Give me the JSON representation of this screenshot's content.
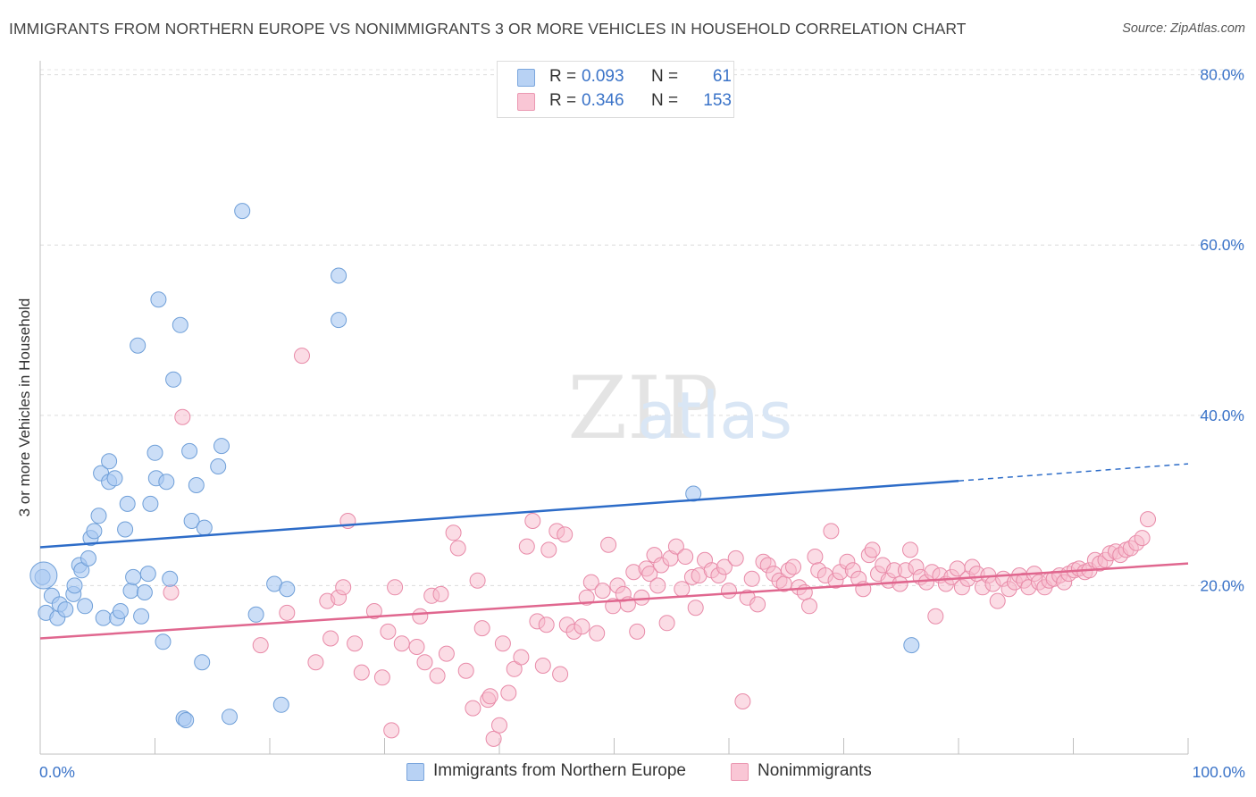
{
  "header": {
    "title": "IMMIGRANTS FROM NORTHERN EUROPE VS NONIMMIGRANTS 3 OR MORE VEHICLES IN HOUSEHOLD CORRELATION CHART",
    "source": "Source: ZipAtlas.com"
  },
  "watermark": {
    "zip": "ZIP",
    "atlas": "atlas"
  },
  "legend": {
    "series1": {
      "r_label": "R =",
      "r_value": "0.093",
      "n_label": "N =",
      "n_value": "61",
      "color": "#a9c8f2"
    },
    "series2": {
      "r_label": "R =",
      "r_value": "0.346",
      "n_label": "N =",
      "n_value": "153",
      "color": "#f7b9cc"
    }
  },
  "chart_data": {
    "type": "scatter",
    "xlabel": "",
    "ylabel": "3 or more Vehicles in Household",
    "xlim": [
      0,
      100
    ],
    "ylim": [
      0,
      83
    ],
    "x_tick_labels": [
      "0.0%",
      "100.0%"
    ],
    "y_ticks": [
      20,
      40,
      60,
      80
    ],
    "y_tick_labels": [
      "20.0%",
      "40.0%",
      "60.0%",
      "80.0%"
    ],
    "grid": true,
    "series": [
      {
        "name": "Immigrants from Northern Europe",
        "color": "#a9c8f2",
        "stroke": "#6f9fd8",
        "trend": {
          "x0": 0,
          "y0": 24.5,
          "x1": 80,
          "y1": 32.3,
          "dash_to_x": 100,
          "dash_to_y": 34.3,
          "color": "#2d6cc8"
        },
        "points": [
          [
            0.2,
            21.0
          ],
          [
            0.5,
            16.8
          ],
          [
            1.0,
            18.8
          ],
          [
            1.5,
            16.2
          ],
          [
            1.7,
            17.8
          ],
          [
            2.2,
            17.2
          ],
          [
            2.9,
            19.0
          ],
          [
            3.0,
            20.0
          ],
          [
            3.4,
            22.4
          ],
          [
            3.6,
            21.8
          ],
          [
            3.9,
            17.6
          ],
          [
            4.2,
            23.2
          ],
          [
            4.4,
            25.6
          ],
          [
            4.7,
            26.4
          ],
          [
            5.1,
            28.2
          ],
          [
            5.3,
            33.2
          ],
          [
            5.5,
            16.2
          ],
          [
            6.0,
            34.6
          ],
          [
            6.0,
            32.2
          ],
          [
            6.5,
            32.6
          ],
          [
            6.7,
            16.2
          ],
          [
            7.0,
            17.0
          ],
          [
            7.4,
            26.6
          ],
          [
            7.6,
            29.6
          ],
          [
            7.9,
            19.4
          ],
          [
            8.1,
            21.0
          ],
          [
            8.5,
            48.2
          ],
          [
            8.8,
            16.4
          ],
          [
            9.1,
            19.2
          ],
          [
            9.4,
            21.4
          ],
          [
            9.6,
            29.6
          ],
          [
            10.0,
            35.6
          ],
          [
            10.1,
            32.6
          ],
          [
            10.3,
            53.6
          ],
          [
            10.7,
            13.4
          ],
          [
            11.0,
            32.2
          ],
          [
            11.3,
            20.8
          ],
          [
            11.6,
            44.2
          ],
          [
            12.2,
            50.6
          ],
          [
            12.5,
            4.4
          ],
          [
            12.7,
            4.2
          ],
          [
            13.0,
            35.8
          ],
          [
            13.2,
            27.6
          ],
          [
            13.6,
            31.8
          ],
          [
            14.1,
            11.0
          ],
          [
            14.3,
            26.8
          ],
          [
            15.5,
            34.0
          ],
          [
            15.8,
            36.4
          ],
          [
            16.5,
            4.6
          ],
          [
            17.6,
            64.0
          ],
          [
            18.8,
            16.6
          ],
          [
            20.4,
            20.2
          ],
          [
            21.0,
            6.0
          ],
          [
            21.5,
            19.6
          ],
          [
            26.0,
            56.4
          ],
          [
            26.0,
            51.2
          ],
          [
            56.9,
            30.8
          ],
          [
            75.9,
            13.0
          ]
        ]
      },
      {
        "name": "Nonimmigrants",
        "color": "#f7b9cc",
        "stroke": "#e88aa8",
        "trend": {
          "x0": 0,
          "y0": 13.8,
          "x1": 100,
          "y1": 22.6,
          "color": "#e0678f"
        },
        "points": [
          [
            11.4,
            19.2
          ],
          [
            12.4,
            39.8
          ],
          [
            19.2,
            13.0
          ],
          [
            21.5,
            16.8
          ],
          [
            22.8,
            47.0
          ],
          [
            24.0,
            11.0
          ],
          [
            25.0,
            18.2
          ],
          [
            25.3,
            13.8
          ],
          [
            26.0,
            18.6
          ],
          [
            26.4,
            19.8
          ],
          [
            26.8,
            27.6
          ],
          [
            27.4,
            13.2
          ],
          [
            28.0,
            9.8
          ],
          [
            29.1,
            17.0
          ],
          [
            29.8,
            9.2
          ],
          [
            30.3,
            14.6
          ],
          [
            30.6,
            3.0
          ],
          [
            30.9,
            19.8
          ],
          [
            31.5,
            13.2
          ],
          [
            32.8,
            12.8
          ],
          [
            33.1,
            16.4
          ],
          [
            33.5,
            11.0
          ],
          [
            34.1,
            18.8
          ],
          [
            34.6,
            9.4
          ],
          [
            34.9,
            19.0
          ],
          [
            35.4,
            12.0
          ],
          [
            36.0,
            26.2
          ],
          [
            36.4,
            24.4
          ],
          [
            37.1,
            10.0
          ],
          [
            37.7,
            5.6
          ],
          [
            38.1,
            20.6
          ],
          [
            38.5,
            15.0
          ],
          [
            39.0,
            6.6
          ],
          [
            39.2,
            7.0
          ],
          [
            39.5,
            2.0
          ],
          [
            40.0,
            3.6
          ],
          [
            40.3,
            13.2
          ],
          [
            40.8,
            7.4
          ],
          [
            41.3,
            10.2
          ],
          [
            41.9,
            11.6
          ],
          [
            42.4,
            24.6
          ],
          [
            42.9,
            27.6
          ],
          [
            43.3,
            15.8
          ],
          [
            43.8,
            10.6
          ],
          [
            44.1,
            15.4
          ],
          [
            44.3,
            24.2
          ],
          [
            45.0,
            26.4
          ],
          [
            45.3,
            9.6
          ],
          [
            45.7,
            26.0
          ],
          [
            45.9,
            15.4
          ],
          [
            46.5,
            14.6
          ],
          [
            47.2,
            15.2
          ],
          [
            47.6,
            18.6
          ],
          [
            48.0,
            20.4
          ],
          [
            48.5,
            14.4
          ],
          [
            49.0,
            19.4
          ],
          [
            49.5,
            24.8
          ],
          [
            49.9,
            17.6
          ],
          [
            50.3,
            20.0
          ],
          [
            50.8,
            19.0
          ],
          [
            51.2,
            17.8
          ],
          [
            51.7,
            21.6
          ],
          [
            52.0,
            14.6
          ],
          [
            52.4,
            18.6
          ],
          [
            52.8,
            22.0
          ],
          [
            53.1,
            21.4
          ],
          [
            53.5,
            23.6
          ],
          [
            53.8,
            20.0
          ],
          [
            54.1,
            22.4
          ],
          [
            54.6,
            15.6
          ],
          [
            54.9,
            23.2
          ],
          [
            55.4,
            24.6
          ],
          [
            55.9,
            19.6
          ],
          [
            56.2,
            23.4
          ],
          [
            56.8,
            21.0
          ],
          [
            57.1,
            17.4
          ],
          [
            57.4,
            21.2
          ],
          [
            57.9,
            23.0
          ],
          [
            58.5,
            21.8
          ],
          [
            59.1,
            21.2
          ],
          [
            59.6,
            22.2
          ],
          [
            60.0,
            19.4
          ],
          [
            60.6,
            23.2
          ],
          [
            61.2,
            6.4
          ],
          [
            61.6,
            18.6
          ],
          [
            62.0,
            20.8
          ],
          [
            62.5,
            17.8
          ],
          [
            63.0,
            22.8
          ],
          [
            63.4,
            22.4
          ],
          [
            63.9,
            21.4
          ],
          [
            64.4,
            20.6
          ],
          [
            64.8,
            20.2
          ],
          [
            65.2,
            21.8
          ],
          [
            65.6,
            22.2
          ],
          [
            66.1,
            19.8
          ],
          [
            66.6,
            19.2
          ],
          [
            67.0,
            17.6
          ],
          [
            67.5,
            23.4
          ],
          [
            67.8,
            21.8
          ],
          [
            68.4,
            21.2
          ],
          [
            68.9,
            26.4
          ],
          [
            69.3,
            20.6
          ],
          [
            69.7,
            21.6
          ],
          [
            70.3,
            22.8
          ],
          [
            70.8,
            21.8
          ],
          [
            71.3,
            20.8
          ],
          [
            71.7,
            19.6
          ],
          [
            72.2,
            23.6
          ],
          [
            72.5,
            24.2
          ],
          [
            73.0,
            21.4
          ],
          [
            73.4,
            22.4
          ],
          [
            73.9,
            20.6
          ],
          [
            74.4,
            21.8
          ],
          [
            74.9,
            20.2
          ],
          [
            75.4,
            21.8
          ],
          [
            75.8,
            24.2
          ],
          [
            76.3,
            22.2
          ],
          [
            76.7,
            21.0
          ],
          [
            77.2,
            20.4
          ],
          [
            77.7,
            21.6
          ],
          [
            78.0,
            16.4
          ],
          [
            78.4,
            21.2
          ],
          [
            78.9,
            20.2
          ],
          [
            79.4,
            21.0
          ],
          [
            79.9,
            22.0
          ],
          [
            80.3,
            19.8
          ],
          [
            80.8,
            20.8
          ],
          [
            81.2,
            22.2
          ],
          [
            81.6,
            21.4
          ],
          [
            82.1,
            19.8
          ],
          [
            82.6,
            21.2
          ],
          [
            83.0,
            20.2
          ],
          [
            83.4,
            18.2
          ],
          [
            83.9,
            20.8
          ],
          [
            84.4,
            19.6
          ],
          [
            84.9,
            20.4
          ],
          [
            85.3,
            21.2
          ],
          [
            85.7,
            20.6
          ],
          [
            86.1,
            19.8
          ],
          [
            86.6,
            21.4
          ],
          [
            87.0,
            20.4
          ],
          [
            87.5,
            19.8
          ],
          [
            87.9,
            20.6
          ],
          [
            88.3,
            20.8
          ],
          [
            88.8,
            21.2
          ],
          [
            89.2,
            20.4
          ],
          [
            89.6,
            21.4
          ],
          [
            90.1,
            21.8
          ],
          [
            90.5,
            22.0
          ],
          [
            91.0,
            21.6
          ],
          [
            91.4,
            21.8
          ],
          [
            91.9,
            23.0
          ],
          [
            92.3,
            22.6
          ],
          [
            92.8,
            23.0
          ],
          [
            93.2,
            23.8
          ],
          [
            93.7,
            24.0
          ],
          [
            94.1,
            23.6
          ],
          [
            94.6,
            24.2
          ],
          [
            95.0,
            24.4
          ],
          [
            95.5,
            25.0
          ],
          [
            96.0,
            25.6
          ],
          [
            96.5,
            27.8
          ]
        ]
      }
    ]
  }
}
